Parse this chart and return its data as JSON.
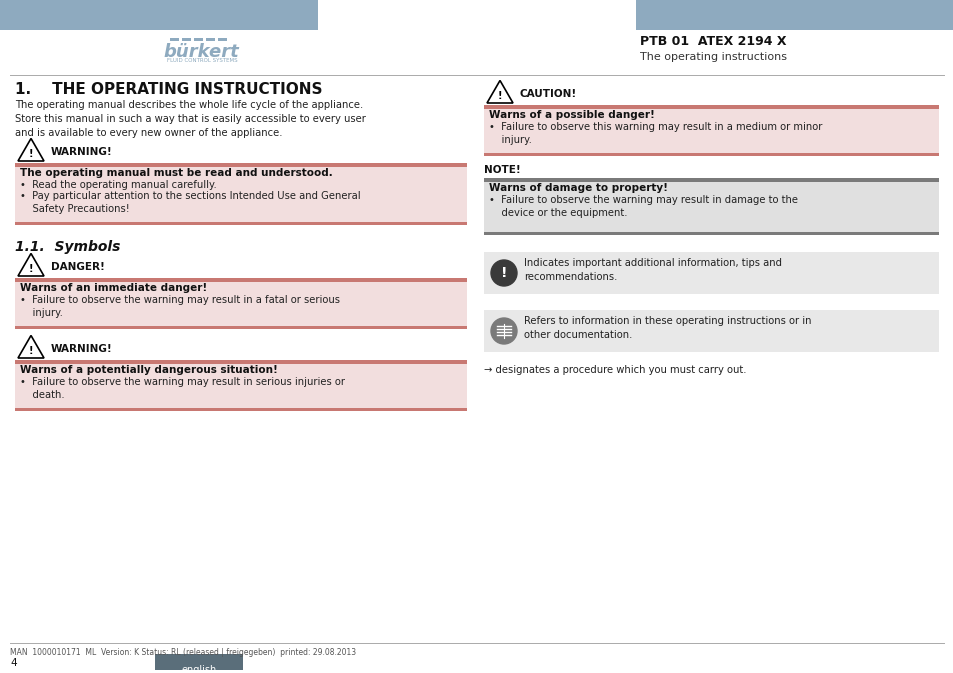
{
  "bg_color": "#ffffff",
  "header_bar_color": "#8eaabf",
  "warning_bar_color": "#c87872",
  "warning_bg_color": "#f2dede",
  "note_bar_color": "#7a7a7a",
  "note_bg_color": "#e0e0e0",
  "info_bg_color": "#e8e8e8",
  "divider_color": "#aaaaaa",
  "footer_english_bg": "#5a6e7a",
  "header_title": "PTB 01  ATEX 2194 X",
  "header_subtitle": "The operating instructions",
  "footer_text": "MAN  1000010171  ML  Version: K Status: RL (released | freigegeben)  printed: 29.08.2013",
  "footer_page": "4",
  "footer_english_text": "english",
  "section1_title": "1.    THE OPERATING INSTRUCTIONS",
  "section1_body": "The operating manual describes the whole life cycle of the appliance.\nStore this manual in such a way that is easily accessible to every user\nand is available to every new owner of the appliance.",
  "warn1_label": "WARNING!",
  "warn1_header": "The operating manual must be read and understood.",
  "warn1_bullet1": "Read the operating manual carefully.",
  "warn1_bullet2": "Pay particular attention to the sections Intended Use and General\n    Safety Precautions!",
  "section2_title": "1.1.  Symbols",
  "danger_label": "DANGER!",
  "danger_header": "Warns of an immediate danger!",
  "danger_bullet": "Failure to observe the warning may result in a fatal or serious\n    injury.",
  "warn2_label": "WARNING!",
  "warn2_header": "Warns of a potentially dangerous situation!",
  "warn2_bullet": "Failure to observe the warning may result in serious injuries or\n    death.",
  "caution_label": "CAUTION!",
  "caution_header": "Warns of a possible danger!",
  "caution_bullet": "Failure to observe this warning may result in a medium or minor\n    injury.",
  "note_label": "NOTE!",
  "note_header": "Warns of damage to property!",
  "note_bullet": "Failure to observe the warning may result in damage to the\n    device or the equipment.",
  "info1_text": "Indicates important additional information, tips and\nrecommendations.",
  "info2_text": "Refers to information in these operating instructions or in\nother documentation.",
  "arrow_text": "→ designates a procedure which you must carry out."
}
